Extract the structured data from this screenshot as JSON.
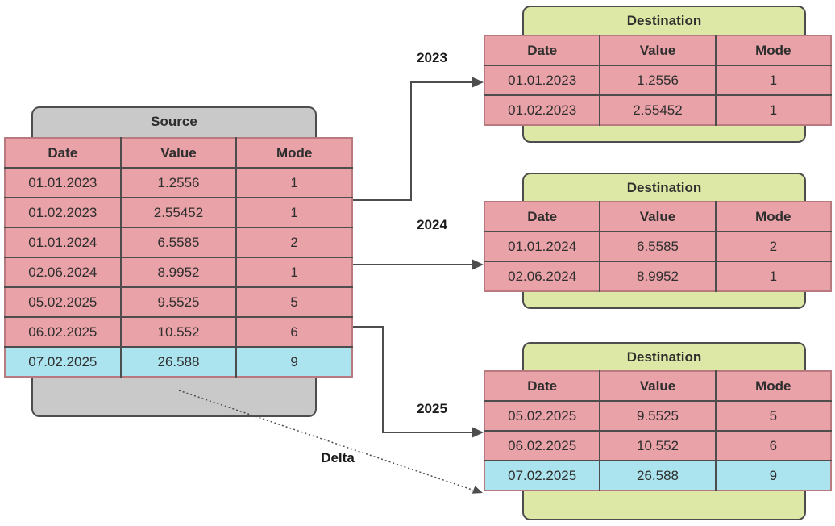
{
  "source": {
    "title": "Source",
    "headers": [
      "Date",
      "Value",
      "Mode"
    ],
    "rows": [
      {
        "cells": [
          "01.01.2023",
          "1.2556",
          "1"
        ],
        "highlight": false
      },
      {
        "cells": [
          "01.02.2023",
          "2.55452",
          "1"
        ],
        "highlight": false
      },
      {
        "cells": [
          "01.01.2024",
          "6.5585",
          "2"
        ],
        "highlight": false
      },
      {
        "cells": [
          "02.06.2024",
          "8.9952",
          "1"
        ],
        "highlight": false
      },
      {
        "cells": [
          "05.02.2025",
          "9.5525",
          "5"
        ],
        "highlight": false
      },
      {
        "cells": [
          "06.02.2025",
          "10.552",
          "6"
        ],
        "highlight": false
      },
      {
        "cells": [
          "07.02.2025",
          "26.588",
          "9"
        ],
        "highlight": true
      }
    ]
  },
  "destinations": [
    {
      "title": "Destination",
      "headers": [
        "Date",
        "Value",
        "Mode"
      ],
      "rows": [
        {
          "cells": [
            "01.01.2023",
            "1.2556",
            "1"
          ],
          "highlight": false
        },
        {
          "cells": [
            "01.02.2023",
            "2.55452",
            "1"
          ],
          "highlight": false
        }
      ]
    },
    {
      "title": "Destination",
      "headers": [
        "Date",
        "Value",
        "Mode"
      ],
      "rows": [
        {
          "cells": [
            "01.01.2024",
            "6.5585",
            "2"
          ],
          "highlight": false
        },
        {
          "cells": [
            "02.06.2024",
            "8.9952",
            "1"
          ],
          "highlight": false
        }
      ]
    },
    {
      "title": "Destination",
      "headers": [
        "Date",
        "Value",
        "Mode"
      ],
      "rows": [
        {
          "cells": [
            "05.02.2025",
            "9.5525",
            "5"
          ],
          "highlight": false
        },
        {
          "cells": [
            "06.02.2025",
            "10.552",
            "6"
          ],
          "highlight": false
        },
        {
          "cells": [
            "07.02.2025",
            "26.588",
            "9"
          ],
          "highlight": true
        }
      ]
    }
  ],
  "labels": {
    "arrow_2023": "2023",
    "arrow_2024": "2024",
    "arrow_2025": "2025",
    "delta": "Delta"
  },
  "colors": {
    "row_pink": "#e9a2a7",
    "row_highlight_cyan": "#abe4ee",
    "container_green": "#dde8a6",
    "container_gray": "#c9c9c9",
    "table_outer_border": "#b8797f",
    "cell_border": "#4d4d4d",
    "arrow_stroke": "#4d4d4d",
    "text": "#2e2e2e"
  }
}
